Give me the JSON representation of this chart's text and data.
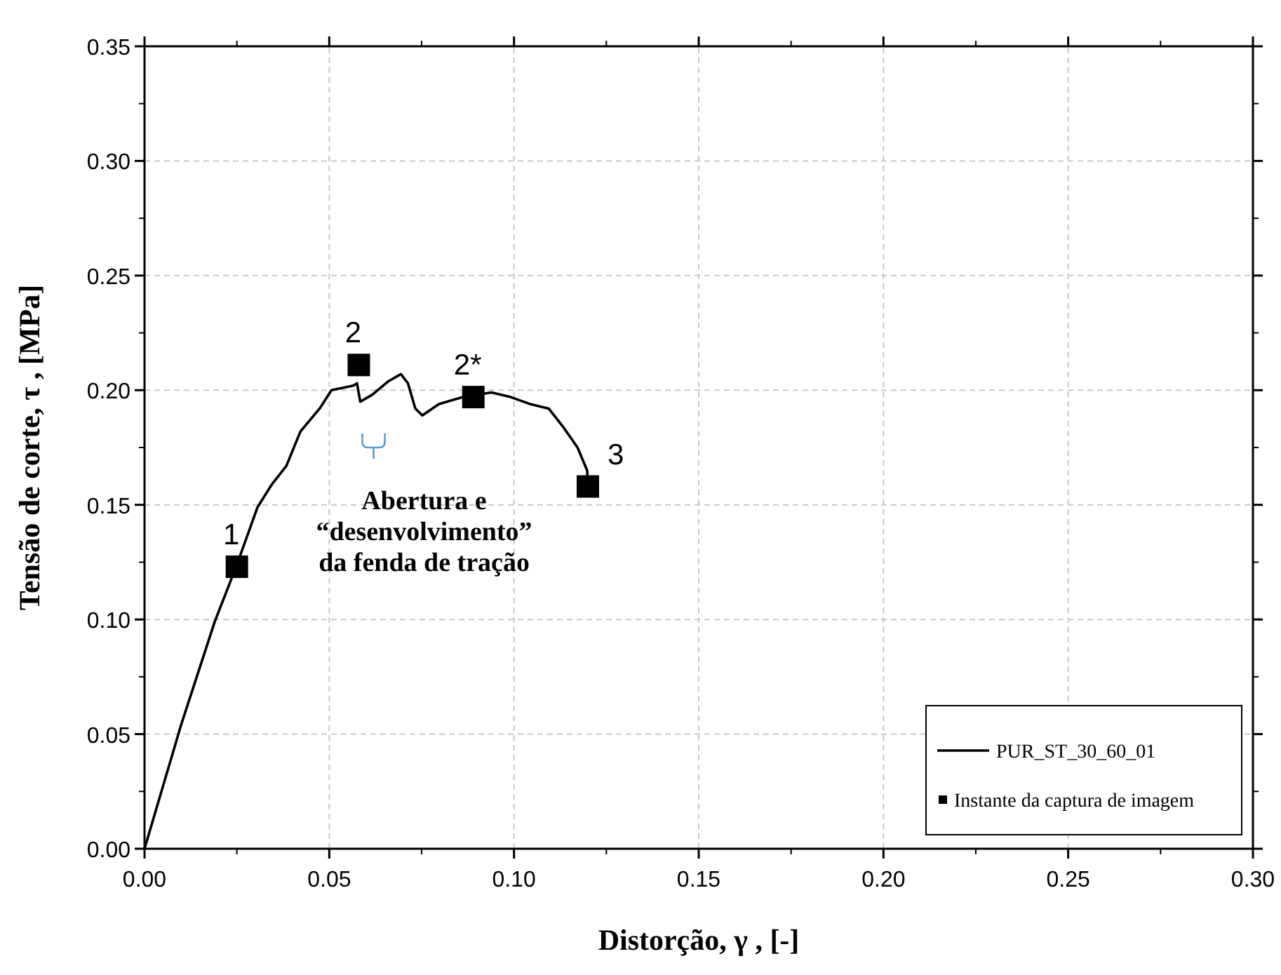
{
  "chart_data": {
    "type": "line",
    "xlabel": "Distorção, γ , [-]",
    "ylabel": "Tensão de corte, τ , [MPa]",
    "xlim": [
      0,
      0.3
    ],
    "xticks": [
      {
        "value": 0,
        "label": "0.00"
      },
      {
        "value": 0.05,
        "label": "0.05"
      },
      {
        "value": 0.1,
        "label": "0.10"
      },
      {
        "value": 0.15,
        "label": "0.15"
      },
      {
        "value": 0.2,
        "label": "0.20"
      },
      {
        "value": 0.25,
        "label": "0.25"
      },
      {
        "value": 0.3,
        "label": "0.30"
      }
    ],
    "ylim": [
      0,
      0.35
    ],
    "yticks": [
      {
        "value": 0,
        "label": "0.00"
      },
      {
        "value": 0.05,
        "label": "0.05"
      },
      {
        "value": 0.1,
        "label": "0.10"
      },
      {
        "value": 0.15,
        "label": "0.15"
      },
      {
        "value": 0.2,
        "label": "0.20"
      },
      {
        "value": 0.25,
        "label": "0.25"
      },
      {
        "value": 0.3,
        "label": "0.30"
      },
      {
        "value": 0.35,
        "label": "0.35"
      }
    ],
    "grid": true,
    "legend": "bottom right",
    "series": [
      {
        "name": "PUR_ST_30_60_01",
        "color": "#000000",
        "line_style": "solid",
        "x": [
          0,
          0.0099,
          0.019,
          0.0248,
          0.0306,
          0.0345,
          0.0384,
          0.0422,
          0.0474,
          0.0506,
          0.0565,
          0.0575,
          0.0584,
          0.0616,
          0.0661,
          0.0694,
          0.0713,
          0.0733,
          0.0752,
          0.0797,
          0.0862,
          0.0939,
          0.0991,
          0.1043,
          0.1094,
          0.1133,
          0.1172,
          0.1198,
          0.12
        ],
        "values": [
          0,
          0.054,
          0.099,
          0.123,
          0.149,
          0.159,
          0.167,
          0.182,
          0.192,
          0.2,
          0.202,
          0.203,
          0.195,
          0.198,
          0.204,
          0.207,
          0.203,
          0.192,
          0.189,
          0.194,
          0.197,
          0.199,
          0.197,
          0.194,
          0.192,
          0.184,
          0.175,
          0.165,
          0.16
        ]
      },
      {
        "name": "Instante da captura de imagem",
        "type": "scatter",
        "color": "#000000",
        "marker": "square",
        "x": [
          0.025,
          0.058,
          0.089,
          0.12
        ],
        "values": [
          0.123,
          0.211,
          0.197,
          0.158
        ]
      }
    ],
    "annotations": [
      {
        "text": "1",
        "x": 0.025,
        "y": 0.123
      },
      {
        "text": "2",
        "x": 0.058,
        "y": 0.211
      },
      {
        "text": "2*",
        "x": 0.089,
        "y": 0.197
      },
      {
        "text": "3",
        "x": 0.12,
        "y": 0.158
      },
      {
        "text": "Abertura e\n“desenvolvimento”\nda fenda de tração",
        "x": 0.062,
        "y": 0.175
      }
    ]
  }
}
